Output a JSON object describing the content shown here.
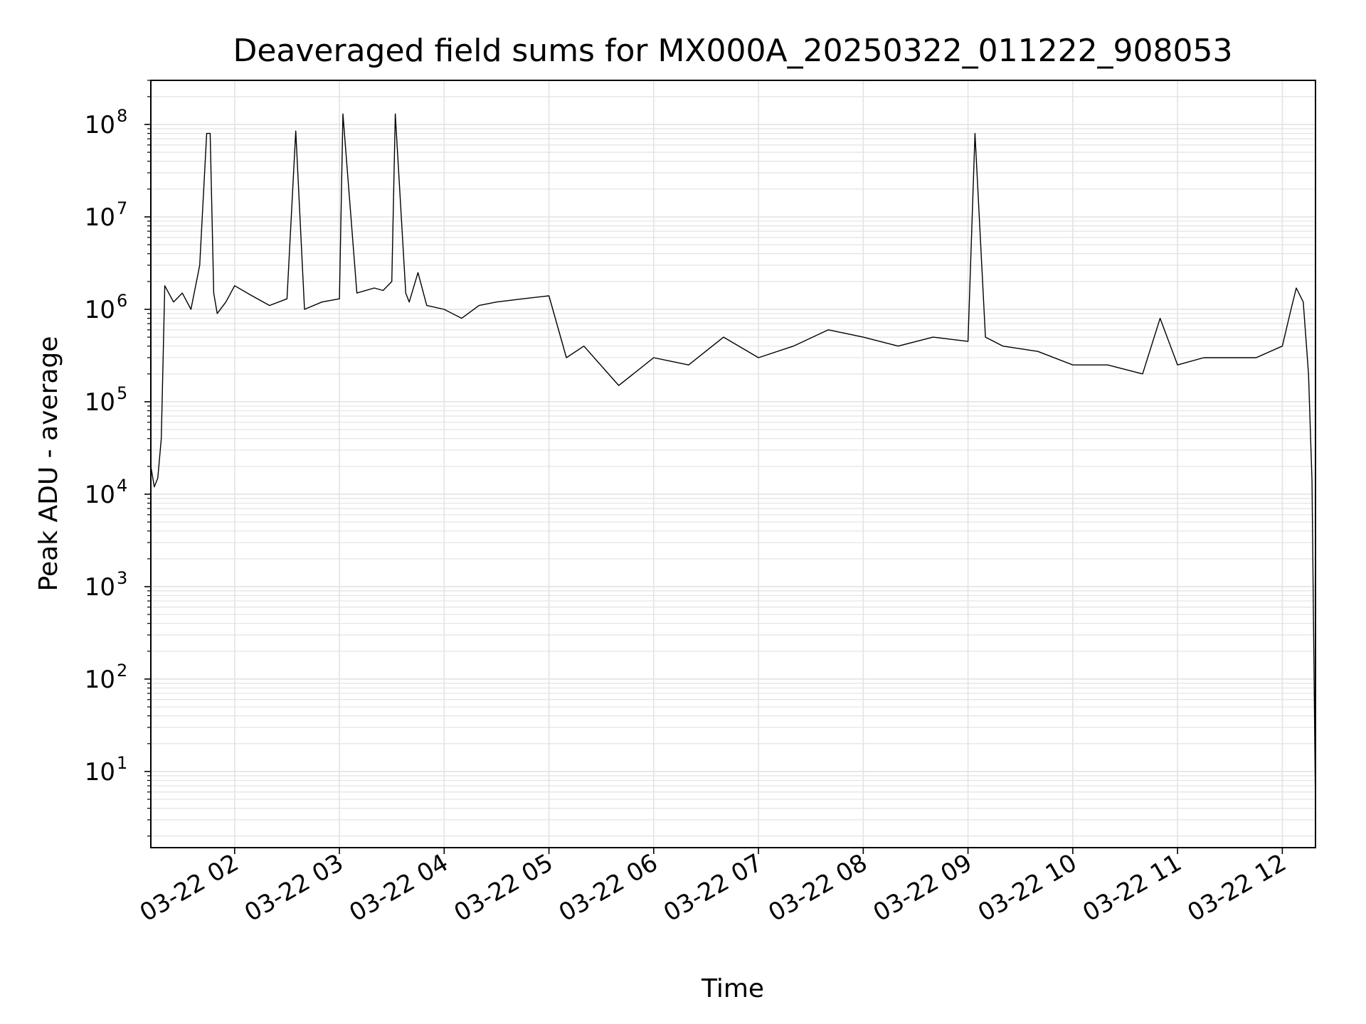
{
  "chart_data": {
    "type": "line",
    "title": "Deaveraged field sums for MX000A_20250322_011222_908053",
    "xlabel": "Time",
    "ylabel": "Peak ADU - average",
    "yscale": "log",
    "ylim": [
      1.5,
      300000000
    ],
    "xlim": [
      "2025-03-22 01:12",
      "2025-03-22 12:19"
    ],
    "grid": true,
    "line_color": "#000000",
    "grid_color": "#e3e3e3",
    "x_ticks": [
      "03-22 02",
      "03-22 03",
      "03-22 04",
      "03-22 05",
      "03-22 06",
      "03-22 07",
      "03-22 08",
      "03-22 09",
      "03-22 10",
      "03-22 11",
      "03-22 12"
    ],
    "y_ticks": [
      {
        "base": "10",
        "exp": "1"
      },
      {
        "base": "10",
        "exp": "2"
      },
      {
        "base": "10",
        "exp": "3"
      },
      {
        "base": "10",
        "exp": "4"
      },
      {
        "base": "10",
        "exp": "5"
      },
      {
        "base": "10",
        "exp": "6"
      },
      {
        "base": "10",
        "exp": "7"
      },
      {
        "base": "10",
        "exp": "8"
      }
    ],
    "series": [
      {
        "x": [
          "2025-03-22 01:12",
          "2025-03-22 01:14",
          "2025-03-22 01:16",
          "2025-03-22 01:18",
          "2025-03-22 01:20",
          "2025-03-22 01:25",
          "2025-03-22 01:30",
          "2025-03-22 01:35",
          "2025-03-22 01:40",
          "2025-03-22 01:44",
          "2025-03-22 01:46",
          "2025-03-22 01:48",
          "2025-03-22 01:50",
          "2025-03-22 01:55",
          "2025-03-22 02:00",
          "2025-03-22 02:10",
          "2025-03-22 02:20",
          "2025-03-22 02:30",
          "2025-03-22 02:35",
          "2025-03-22 02:40",
          "2025-03-22 02:50",
          "2025-03-22 03:00",
          "2025-03-22 03:02",
          "2025-03-22 03:10",
          "2025-03-22 03:20",
          "2025-03-22 03:25",
          "2025-03-22 03:30",
          "2025-03-22 03:32",
          "2025-03-22 03:38",
          "2025-03-22 03:40",
          "2025-03-22 03:45",
          "2025-03-22 03:50",
          "2025-03-22 04:00",
          "2025-03-22 04:10",
          "2025-03-22 04:20",
          "2025-03-22 04:30",
          "2025-03-22 04:45",
          "2025-03-22 05:00",
          "2025-03-22 05:10",
          "2025-03-22 05:20",
          "2025-03-22 05:40",
          "2025-03-22 06:00",
          "2025-03-22 06:20",
          "2025-03-22 06:40",
          "2025-03-22 07:00",
          "2025-03-22 07:20",
          "2025-03-22 07:40",
          "2025-03-22 08:00",
          "2025-03-22 08:20",
          "2025-03-22 08:40",
          "2025-03-22 09:00",
          "2025-03-22 09:04",
          "2025-03-22 09:10",
          "2025-03-22 09:20",
          "2025-03-22 09:40",
          "2025-03-22 10:00",
          "2025-03-22 10:20",
          "2025-03-22 10:40",
          "2025-03-22 10:50",
          "2025-03-22 11:00",
          "2025-03-22 11:15",
          "2025-03-22 11:30",
          "2025-03-22 11:45",
          "2025-03-22 12:00",
          "2025-03-22 12:05",
          "2025-03-22 12:08",
          "2025-03-22 12:12",
          "2025-03-22 12:15",
          "2025-03-22 12:17",
          "2025-03-22 12:19"
        ],
        "y": [
          20000,
          12000,
          15000,
          40000,
          1800000,
          1200000,
          1500000,
          1000000,
          3000000,
          80000000,
          80000000,
          1500000,
          900000,
          1200000,
          1800000,
          1400000,
          1100000,
          1300000,
          85000000,
          1000000,
          1200000,
          1300000,
          130000000,
          1500000,
          1700000,
          1600000,
          2000000,
          130000000,
          1500000,
          1200000,
          2500000,
          1100000,
          1000000,
          800000,
          1100000,
          1200000,
          1300000,
          1400000,
          300000,
          400000,
          150000,
          300000,
          250000,
          500000,
          300000,
          400000,
          600000,
          500000,
          400000,
          500000,
          450000,
          80000000,
          500000,
          400000,
          350000,
          250000,
          250000,
          200000,
          800000,
          250000,
          300000,
          300000,
          300000,
          400000,
          1000000,
          1700000,
          1200000,
          200000,
          14000,
          4
        ]
      }
    ]
  }
}
